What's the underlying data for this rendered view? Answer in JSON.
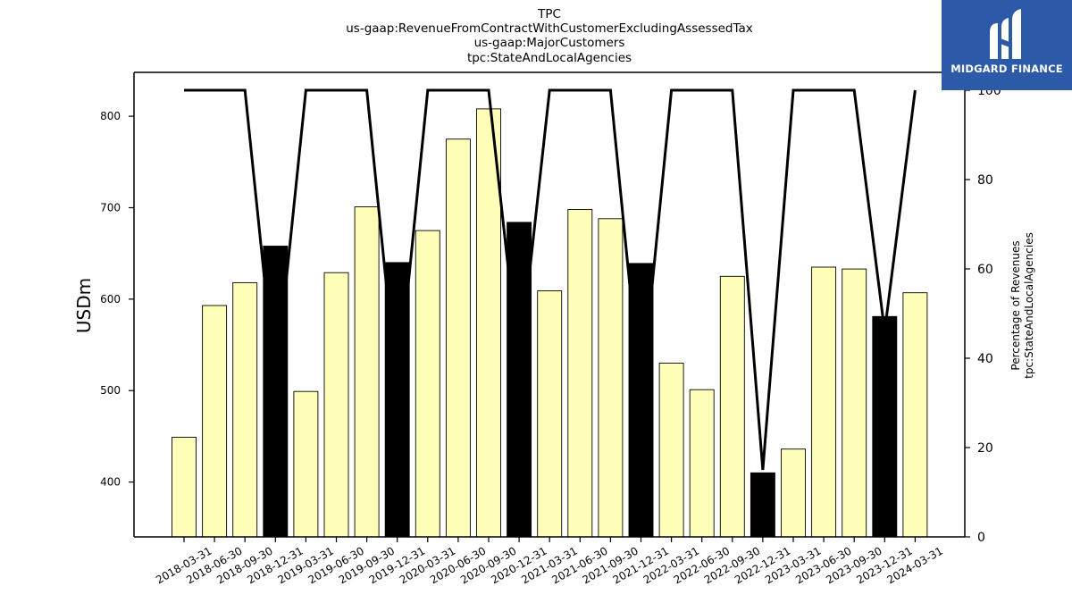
{
  "chart_data": {
    "type": "bar",
    "title_lines": [
      "TPC",
      "us-gaap:RevenueFromContractWithCustomerExcludingAssessedTax",
      "us-gaap:MajorCustomers",
      "tpc:StateAndLocalAgencies"
    ],
    "ylabel": "USDm",
    "y2label_lines": [
      "Percentage of Revenues",
      "tpc:StateAndLocalAgencies"
    ],
    "ylim": [
      340,
      848
    ],
    "y2lim": [
      0,
      104
    ],
    "yticks": [
      400,
      500,
      600,
      700,
      800
    ],
    "y2ticks": [
      0,
      20,
      40,
      60,
      80,
      100
    ],
    "categories": [
      "2018-03-31",
      "2018-06-30",
      "2018-09-30",
      "2018-12-31",
      "2019-03-31",
      "2019-06-30",
      "2019-09-30",
      "2019-12-31",
      "2020-03-31",
      "2020-06-30",
      "2020-09-30",
      "2020-12-31",
      "2021-03-31",
      "2021-06-30",
      "2021-09-30",
      "2021-12-31",
      "2022-03-31",
      "2022-06-30",
      "2022-09-30",
      "2022-12-31",
      "2023-03-31",
      "2023-06-30",
      "2023-09-30",
      "2023-12-31",
      "2024-03-31"
    ],
    "series": [
      {
        "type": "bar",
        "axis": "left",
        "values": [
          449,
          593,
          618,
          658,
          499,
          629,
          701,
          640,
          675,
          775,
          808,
          684,
          609,
          698,
          688,
          639,
          530,
          501,
          625,
          410,
          436,
          635,
          633,
          581,
          607
        ],
        "highlight": [
          false,
          false,
          false,
          true,
          false,
          false,
          false,
          true,
          false,
          false,
          false,
          true,
          false,
          false,
          false,
          true,
          false,
          false,
          false,
          true,
          false,
          false,
          false,
          true,
          false
        ]
      },
      {
        "type": "line",
        "axis": "right",
        "values": [
          100,
          100,
          100,
          34,
          100,
          100,
          100,
          32,
          100,
          100,
          100,
          38,
          100,
          100,
          100,
          31,
          100,
          100,
          100,
          15,
          100,
          100,
          100,
          46,
          100
        ]
      }
    ],
    "colors": {
      "bar": "#ffffb9",
      "bar_highlight": "#000000",
      "line": "#000000",
      "edge": "#000000"
    },
    "grid": false
  },
  "brand": {
    "name": "MIDGARD FINANCE",
    "icon": "midgard-logo-icon",
    "bg_color": "#2c5aa8"
  }
}
